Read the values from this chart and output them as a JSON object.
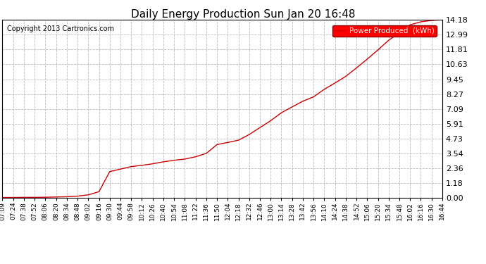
{
  "title": "Daily Energy Production Sun Jan 20 16:48",
  "copyright": "Copyright 2013 Cartronics.com",
  "legend_label": "Power Produced  (kWh)",
  "line_color": "#cc0000",
  "background_color": "#ffffff",
  "grid_color": "#bbbbbb",
  "yticks": [
    0.0,
    1.18,
    2.36,
    3.54,
    4.73,
    5.91,
    7.09,
    8.27,
    9.45,
    10.63,
    11.81,
    12.99,
    14.18
  ],
  "ymax": 14.18,
  "ymin": 0.0,
  "xtick_labels": [
    "07:09",
    "07:24",
    "07:38",
    "07:52",
    "08:06",
    "08:20",
    "08:34",
    "08:48",
    "09:02",
    "09:16",
    "09:30",
    "09:44",
    "09:58",
    "10:12",
    "10:26",
    "10:40",
    "10:54",
    "11:08",
    "11:22",
    "11:36",
    "11:50",
    "12:04",
    "12:18",
    "12:32",
    "12:46",
    "13:00",
    "13:14",
    "13:28",
    "13:42",
    "13:56",
    "14:10",
    "14:24",
    "14:38",
    "14:52",
    "15:06",
    "15:20",
    "15:34",
    "15:48",
    "16:02",
    "16:16",
    "16:30",
    "16:44"
  ],
  "x_values": [
    0,
    1,
    2,
    3,
    4,
    5,
    6,
    7,
    8,
    9,
    10,
    11,
    12,
    13,
    14,
    15,
    16,
    17,
    18,
    19,
    20,
    21,
    22,
    23,
    24,
    25,
    26,
    27,
    28,
    29,
    30,
    31,
    32,
    33,
    34,
    35,
    36,
    37,
    38,
    39,
    40,
    41
  ],
  "y_values": [
    0.04,
    0.04,
    0.05,
    0.05,
    0.06,
    0.08,
    0.1,
    0.15,
    0.25,
    0.5,
    2.1,
    2.3,
    2.5,
    2.6,
    2.72,
    2.88,
    3.0,
    3.1,
    3.28,
    3.55,
    4.25,
    4.42,
    4.6,
    5.05,
    5.6,
    6.15,
    6.78,
    7.25,
    7.7,
    8.05,
    8.65,
    9.15,
    9.68,
    10.35,
    11.05,
    11.78,
    12.55,
    13.15,
    13.78,
    14.02,
    14.13,
    14.18
  ]
}
